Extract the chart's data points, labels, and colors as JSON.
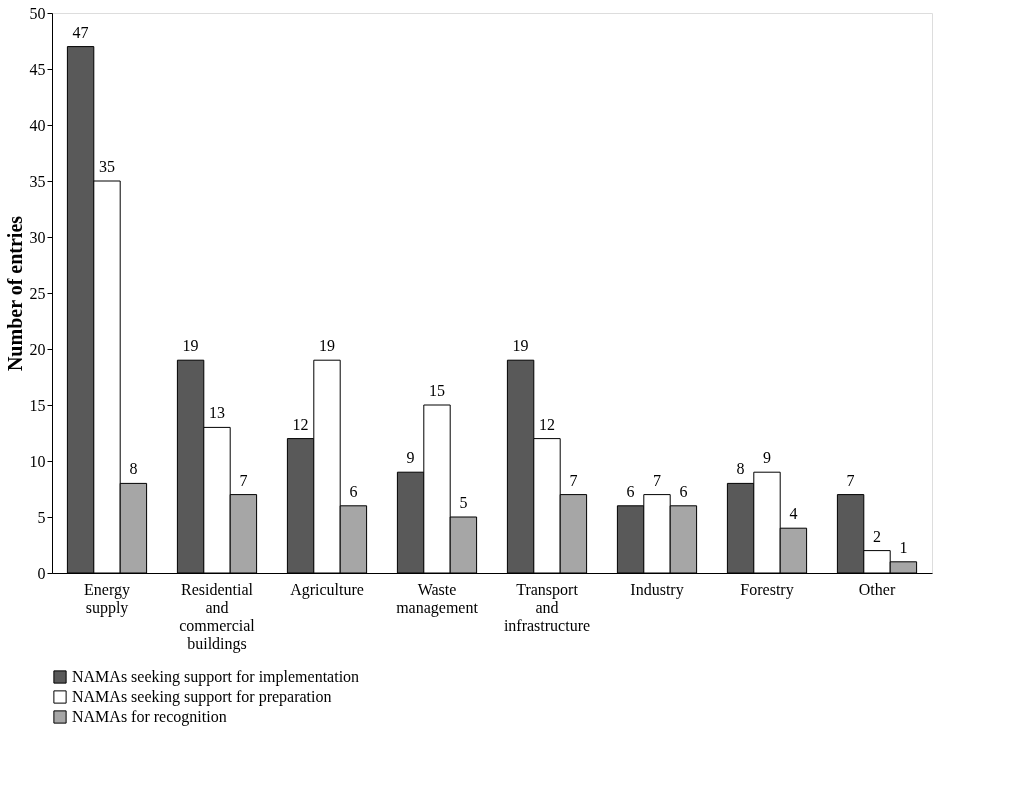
{
  "chart_data": {
    "type": "bar",
    "ylabel": "Number of entries",
    "categories": [
      "Energy supply",
      "Residential and commercial buildings",
      "Agriculture",
      "Waste management",
      "Transport and infrastructure",
      "Industry",
      "Forestry",
      "Other"
    ],
    "series": [
      {
        "name": "NAMAs seeking support for implementation",
        "color": "#595959",
        "values": [
          47,
          19,
          12,
          9,
          19,
          6,
          8,
          7
        ]
      },
      {
        "name": "NAMAs seeking support for preparation",
        "color": "#ffffff",
        "values": [
          35,
          13,
          19,
          15,
          12,
          7,
          9,
          2
        ]
      },
      {
        "name": "NAMAs for recognition",
        "color": "#a6a6a6",
        "values": [
          8,
          7,
          6,
          5,
          7,
          6,
          4,
          1
        ]
      }
    ],
    "ylim": [
      0,
      50
    ],
    "yticks": [
      0,
      5,
      10,
      15,
      20,
      25,
      30,
      35,
      40,
      45,
      50
    ],
    "grid": false,
    "legend": "bottom",
    "data_labels": true
  }
}
